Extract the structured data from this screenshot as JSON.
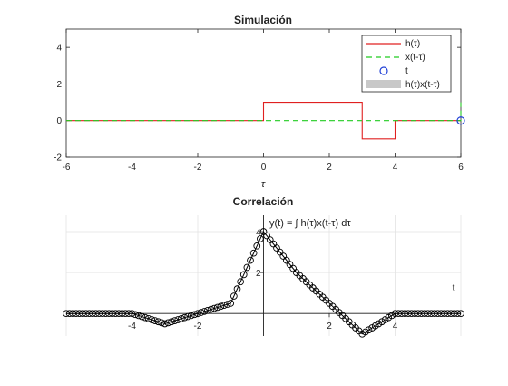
{
  "chart_data": [
    {
      "type": "line",
      "title": "Simulación",
      "xlabel": "τ",
      "ylabel": "",
      "xlim": [
        -6,
        6
      ],
      "ylim": [
        -2,
        5
      ],
      "xticks": [
        -6,
        -4,
        -2,
        0,
        2,
        4,
        6
      ],
      "yticks": [
        -2,
        0,
        2,
        4
      ],
      "grid": false,
      "legend": "top-right",
      "series": [
        {
          "name": "h(τ)",
          "style": "solid",
          "color": "#e02020",
          "x": [
            -6,
            0,
            0,
            3,
            3,
            4,
            4,
            6
          ],
          "y": [
            0,
            0,
            1,
            1,
            -1,
            -1,
            0,
            0
          ]
        },
        {
          "name": "x(t-τ)",
          "style": "dashed",
          "color": "#22cc22",
          "x": [
            -6,
            6,
            6
          ],
          "y": [
            0,
            0,
            1
          ]
        },
        {
          "name": "t",
          "style": "marker-circle",
          "color": "#1f3fd6",
          "x": [
            6
          ],
          "y": [
            0
          ]
        },
        {
          "name": "h(τ)x(t-τ)",
          "style": "fill",
          "color": "#c8c8c8",
          "x": [],
          "y": []
        }
      ]
    },
    {
      "type": "line",
      "title": "Correlación",
      "xlabel": "t",
      "ylabel": "",
      "xlim": [
        -6,
        6
      ],
      "ylim": [
        -1.1,
        4.8
      ],
      "xticks": [
        -4,
        -2,
        2,
        4
      ],
      "yticks": [
        2,
        4
      ],
      "grid": true,
      "annotation": "y(t) = ∫ h(τ)x(t-τ) dτ",
      "series": [
        {
          "name": "",
          "style": "line-circle-markers",
          "color": "#000000",
          "x": [
            -6,
            -4,
            -3,
            -2,
            -1,
            0,
            1,
            2,
            3,
            4,
            6
          ],
          "y": [
            0,
            0,
            -0.5,
            0,
            0.5,
            4,
            2,
            0.5,
            -1,
            0,
            0
          ]
        }
      ]
    }
  ]
}
